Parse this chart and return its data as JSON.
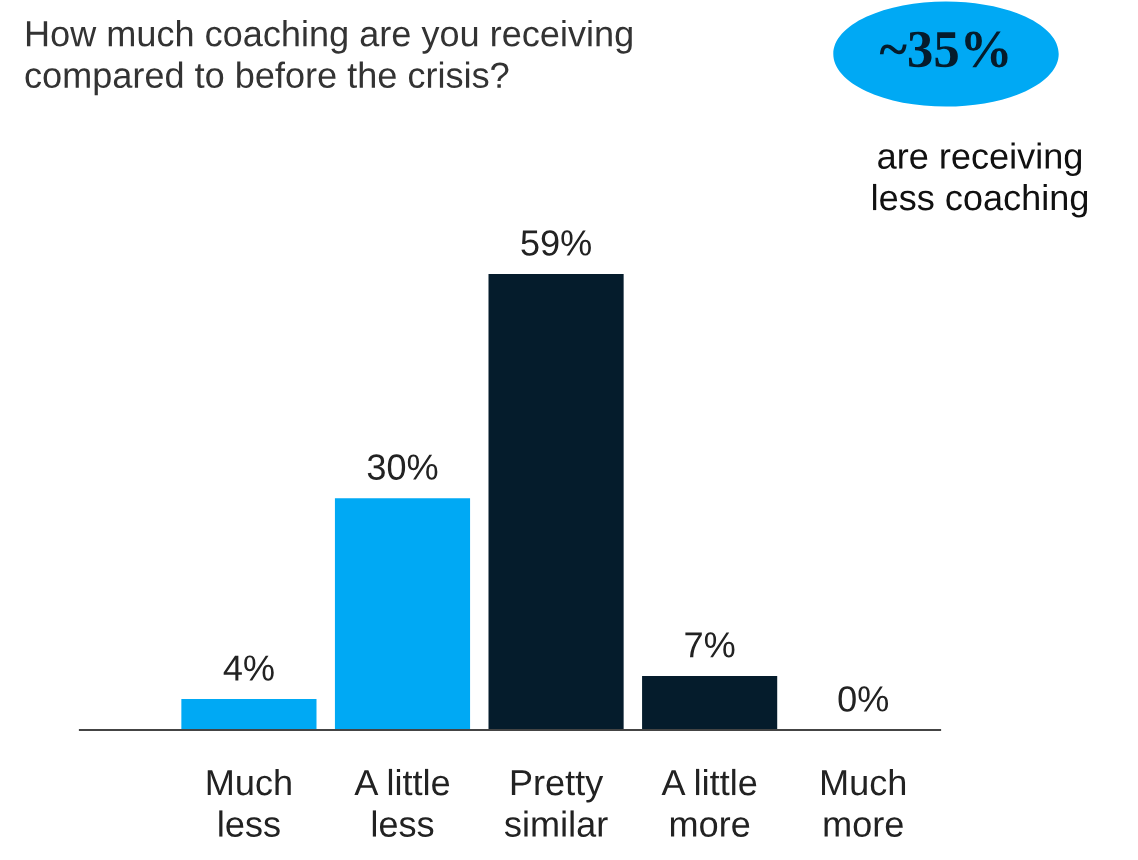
{
  "chart_data": {
    "type": "bar",
    "title": "How much coaching are you receiving\ncompared to before the crisis?",
    "categories": [
      "Much\nless",
      "A little\nless",
      "Pretty\nsimilar",
      "A little\nmore",
      "Much\nmore"
    ],
    "values": [
      4,
      30,
      59,
      7,
      0
    ],
    "colors": [
      "#00a9f4",
      "#00a9f4",
      "#051c2c",
      "#051c2c",
      "#051c2c"
    ],
    "data_labels": true,
    "value_labels": [
      "4%",
      "30%",
      "59%",
      "7%",
      "0%"
    ],
    "annotations": [
      "~35%",
      "are receiving\nless coaching"
    ],
    "grid": false,
    "legend": false
  }
}
